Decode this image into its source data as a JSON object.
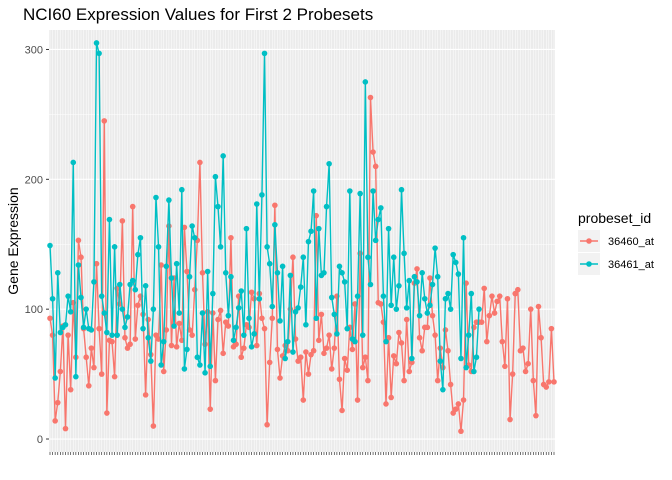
{
  "chart_data": {
    "type": "line",
    "title": "NCI60 Expression Values for First 2 Probesets",
    "xlabel": "",
    "ylabel": "Gene Expression",
    "ylim": [
      -10,
      315
    ],
    "yticks": [
      0,
      100,
      200,
      300
    ],
    "grid": true,
    "legend": {
      "title": "probeset_id",
      "placement": "right"
    },
    "series": [
      {
        "name": "36460_at",
        "color": "#F8766D",
        "values": [
          93,
          80,
          14,
          28,
          52,
          87,
          8,
          80,
          38,
          105,
          63,
          153,
          140,
          85,
          63,
          41,
          70,
          55,
          135,
          85,
          50,
          245,
          20,
          76,
          75,
          48,
          116,
          104,
          168,
          78,
          70,
          73,
          179,
          77,
          103,
          110,
          96,
          34,
          92,
          65,
          10,
          80,
          77,
          134,
          52,
          84,
          164,
          72,
          124,
          71,
          89,
          76,
          163,
          129,
          84,
          80,
          115,
          153,
          213,
          128,
          73,
          98,
          23,
          97,
          45,
          92,
          99,
          66,
          90,
          87,
          155,
          71,
          73,
          110,
          63,
          70,
          88,
          86,
          113,
          108,
          72,
          112,
          93,
          85,
          11,
          59,
          93,
          180,
          69,
          47,
          64,
          72,
          68,
          100,
          140,
          77,
          60,
          63,
          30,
          67,
          50,
          65,
          68,
          172,
          76,
          96,
          66,
          70,
          80,
          54,
          70,
          110,
          46,
          22,
          62,
          53,
          86,
          69,
          104,
          30,
          143,
          55,
          63,
          45,
          263,
          221,
          210,
          105,
          104,
          90,
          27,
          78,
          32,
          64,
          58,
          82,
          74,
          45,
          92,
          52,
          59,
          120,
          131,
          78,
          68,
          86,
          86,
          124,
          95,
          80,
          45,
          70,
          55,
          84,
          68,
          42,
          20,
          23,
          27,
          6,
          30,
          120,
          57,
          52,
          86,
          90,
          90,
          90,
          116,
          75,
          95,
          110,
          97,
          106,
          110,
          75,
          56,
          108,
          15,
          50,
          112,
          115,
          68,
          70,
          52,
          58,
          100,
          45,
          18,
          102,
          78,
          42,
          40,
          44,
          85,
          44
        ]
      },
      {
        "name": "36461_at",
        "color": "#00BFC4",
        "values": [
          149,
          108,
          47,
          128,
          82,
          86,
          88,
          110,
          98,
          213,
          48,
          134,
          109,
          86,
          100,
          85,
          84,
          121,
          305,
          297,
          110,
          97,
          82,
          169,
          80,
          148,
          80,
          119,
          100,
          86,
          94,
          119,
          122,
          115,
          142,
          155,
          85,
          118,
          78,
          60,
          100,
          186,
          148,
          57,
          75,
          133,
          184,
          124,
          87,
          135,
          97,
          192,
          54,
          69,
          125,
          164,
          155,
          63,
          57,
          97,
          51,
          129,
          56,
          112,
          202,
          179,
          148,
          218,
          128,
          95,
          125,
          76,
          86,
          101,
          114,
          80,
          162,
          93,
          71,
          81,
          181,
          108,
          188,
          297,
          148,
          135,
          102,
          165,
          128,
          91,
          133,
          62,
          75,
          126,
          67,
          98,
          101,
          117,
          140,
          88,
          152,
          160,
          191,
          93,
          162,
          126,
          128,
          179,
          212,
          109,
          96,
          81,
          133,
          128,
          121,
          85,
          191,
          77,
          75,
          110,
          189,
          80,
          275,
          140,
          119,
          191,
          153,
          169,
          178,
          110,
          75,
          162,
          103,
          140,
          100,
          118,
          192,
          143,
          101,
          122,
          62,
          125,
          121,
          95,
          128,
          108,
          97,
          103,
          119,
          147,
          125,
          60,
          38,
          108,
          112,
          100,
          142,
          136,
          127,
          62,
          155,
          55,
          80,
          112,
          52,
          63,
          100
        ]
      }
    ]
  }
}
